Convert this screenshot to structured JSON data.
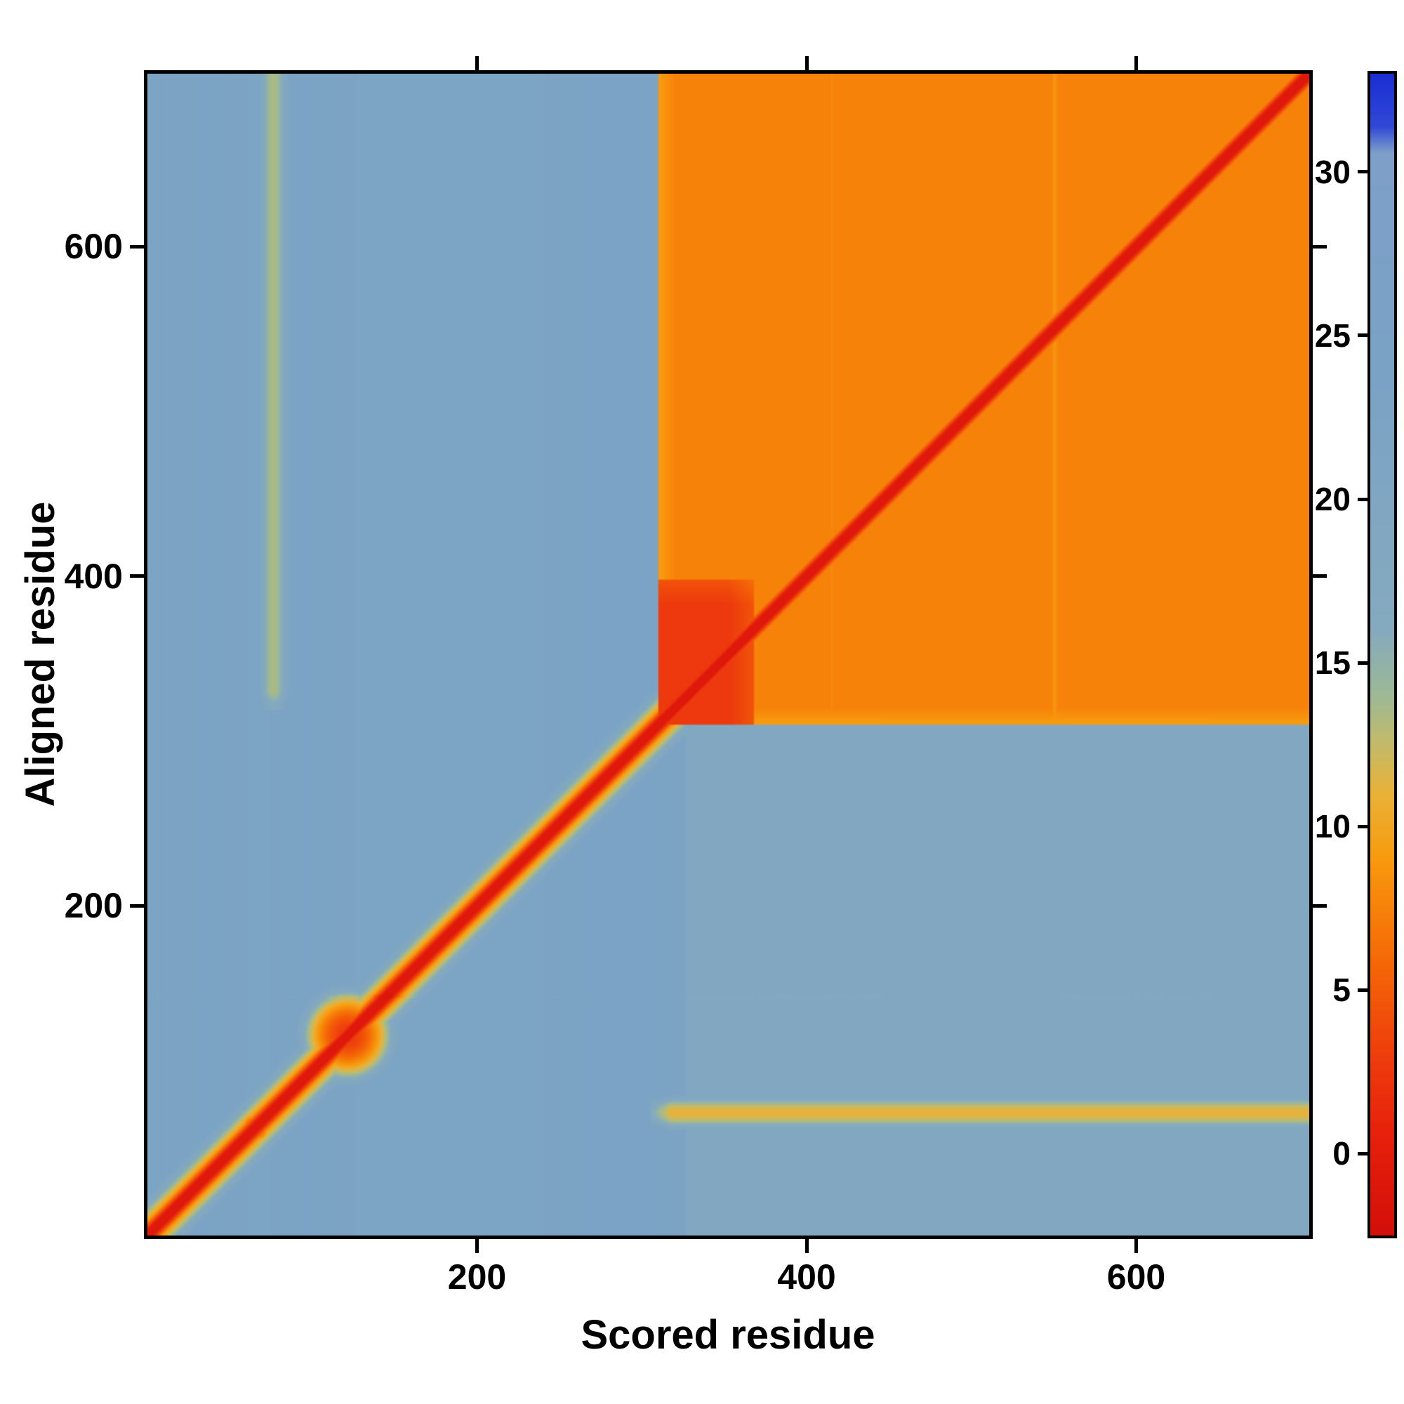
{
  "chart_data": {
    "type": "heatmap",
    "title": "",
    "xlabel": "Scored residue",
    "ylabel": "Aligned residue",
    "x_range": [
      1,
      705
    ],
    "y_range": [
      1,
      705
    ],
    "x_ticks": [
      200,
      400,
      600
    ],
    "y_ticks": [
      200,
      400,
      600
    ],
    "grid": false,
    "background_value": 19,
    "colorbar": {
      "position": "right",
      "ticks": [
        0,
        5,
        10,
        15,
        20,
        25,
        30
      ],
      "vmin": -2.5,
      "vmax": 33,
      "stops": [
        {
          "v": -2.5,
          "c": "#d30f0a"
        },
        {
          "v": 0.5,
          "c": "#e6200b"
        },
        {
          "v": 3.0,
          "c": "#ee3e0d"
        },
        {
          "v": 6.0,
          "c": "#f56b06"
        },
        {
          "v": 9.0,
          "c": "#f89a0e"
        },
        {
          "v": 11.0,
          "c": "#e9b238"
        },
        {
          "v": 12.5,
          "c": "#c3ba69"
        },
        {
          "v": 14.0,
          "c": "#9db995"
        },
        {
          "v": 16.0,
          "c": "#85aabf"
        },
        {
          "v": 24.0,
          "c": "#7aa2c5"
        },
        {
          "v": 30.6,
          "c": "#7d9fc8"
        },
        {
          "v": 31.4,
          "c": "#3148d6"
        },
        {
          "v": 33.0,
          "c": "#1a2ed2"
        }
      ]
    },
    "features": {
      "diagonal": {
        "core_halfwidth": 3,
        "core_value": -1.3,
        "halo_halfwidth": 9,
        "halo_value": 8.6,
        "fade_halfwidth": 24,
        "fade_value": 21
      },
      "domain_block": {
        "x": [
          311,
          705
        ],
        "y": [
          311,
          705
        ],
        "value": 3.8,
        "edge_width": 10,
        "edge_value": 9.2
      },
      "block_hot_corner": {
        "x": [
          311,
          368
        ],
        "y": [
          311,
          398
        ],
        "value": 1.9
      },
      "pale_lines": [
        {
          "x": [
            412,
            420
          ],
          "value": 7.6
        },
        {
          "x": [
            546,
            556
          ],
          "value": 8.4
        }
      ],
      "cross_stripe_horizontal": {
        "y": [
          64,
          86
        ],
        "x_start": 306,
        "value": 7.4
      },
      "cross_stripe_vertical": {
        "x": [
          66,
          88
        ],
        "y_start": 320,
        "value": 9.0
      },
      "diagonal_blobs": [
        {
          "center": 122,
          "radius": 32,
          "value": 2.0
        },
        {
          "center": 66,
          "radius": 13,
          "value": 2.4
        }
      ],
      "green_streak_region": {
        "x": [
          328,
          705
        ],
        "y": [
          1,
          310
        ],
        "value_drop": 3.5
      }
    }
  }
}
